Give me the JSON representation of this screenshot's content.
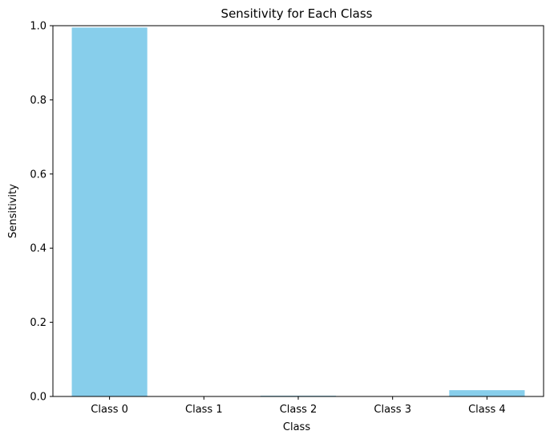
{
  "chart_data": {
    "type": "bar",
    "title": "Sensitivity for Each Class",
    "xlabel": "Class",
    "ylabel": "Sensitivity",
    "categories": [
      "Class 0",
      "Class 1",
      "Class 2",
      "Class 3",
      "Class 4"
    ],
    "values": [
      0.995,
      0.0,
      0.002,
      0.0,
      0.017
    ],
    "ylim": [
      0,
      1.0
    ],
    "yticks": [
      "0.0",
      "0.2",
      "0.4",
      "0.6",
      "0.8",
      "1.0"
    ],
    "bar_color": "#87ceeb",
    "grid": false,
    "legend": "none"
  }
}
